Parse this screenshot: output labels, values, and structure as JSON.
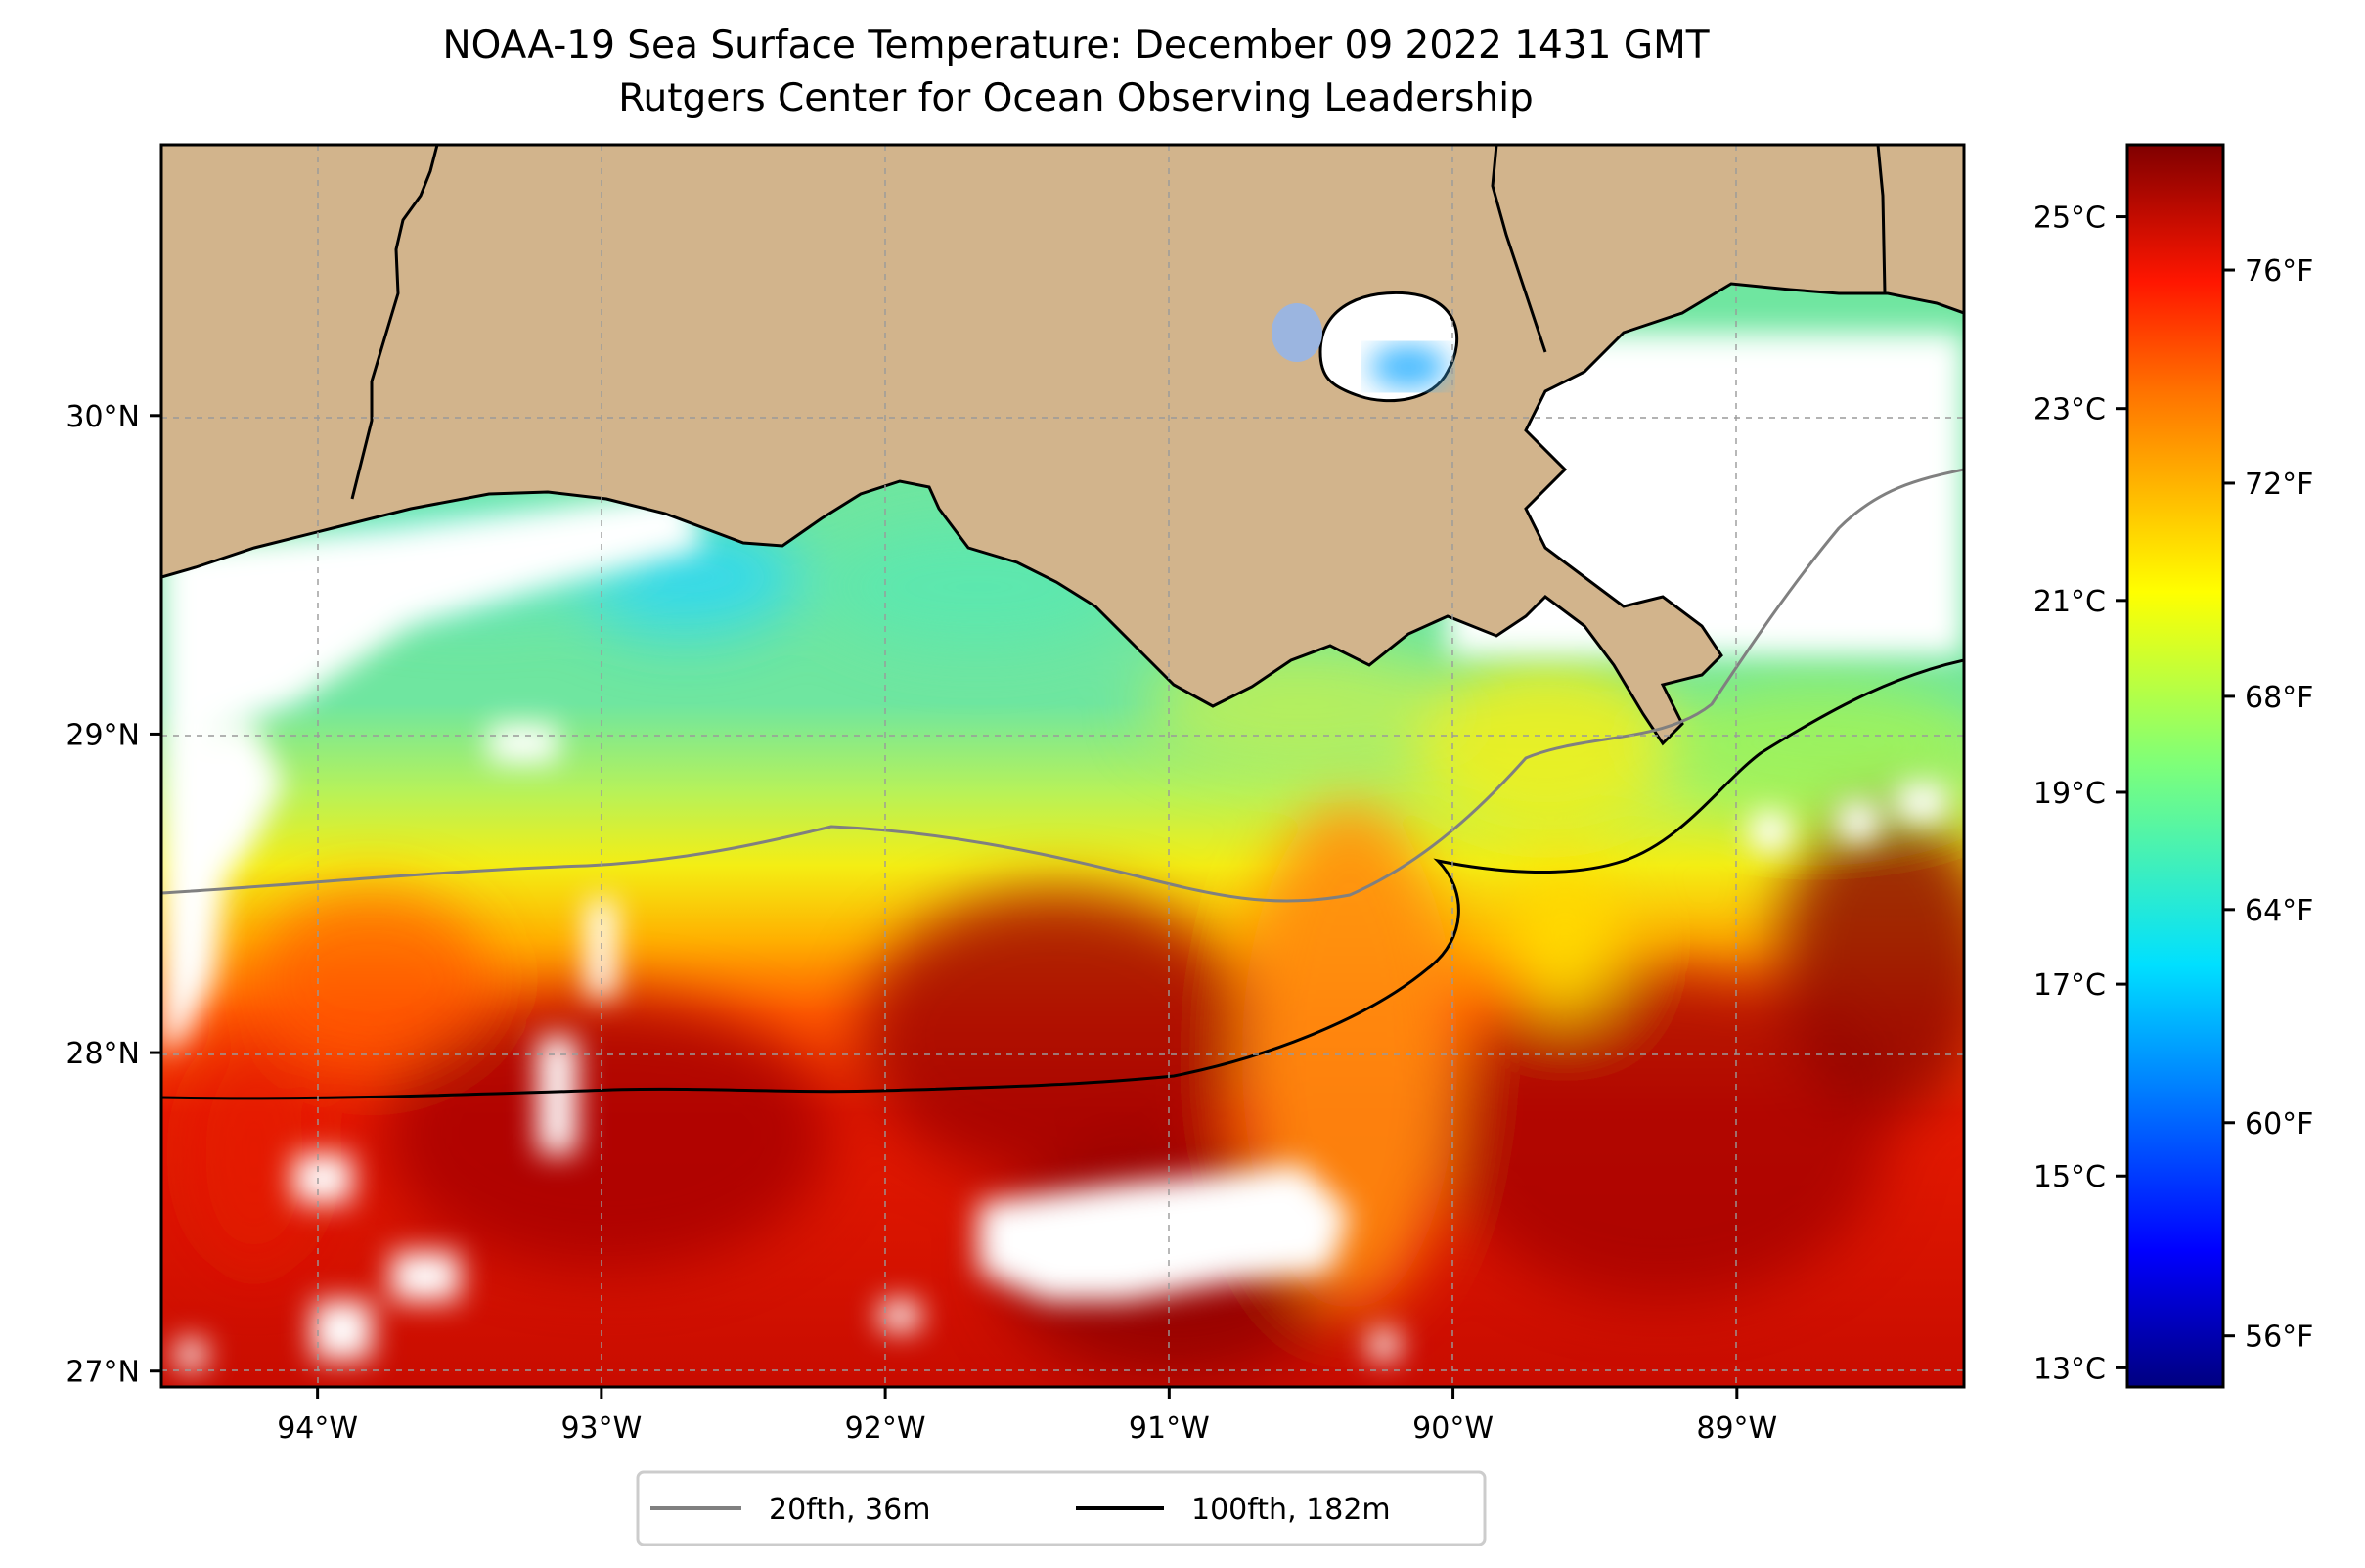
{
  "title": {
    "line1": "NOAA-19 Sea Surface Temperature: December 09 2022 1431 GMT",
    "line2": "Rutgers Center for Ocean Observing Leadership"
  },
  "map": {
    "lon_range": [
      -94.55,
      -88.2
    ],
    "lat_range": [
      26.95,
      30.85
    ],
    "gridlines": true,
    "lon_ticks": [
      {
        "value": -94,
        "label": "94°W"
      },
      {
        "value": -93,
        "label": "93°W"
      },
      {
        "value": -92,
        "label": "92°W"
      },
      {
        "value": -91,
        "label": "91°W"
      },
      {
        "value": -90,
        "label": "90°W"
      },
      {
        "value": -89,
        "label": "89°W"
      }
    ],
    "lat_ticks": [
      {
        "value": 30,
        "label": "30°N"
      },
      {
        "value": 29,
        "label": "29°N"
      },
      {
        "value": 28,
        "label": "28°N"
      },
      {
        "value": 27,
        "label": "27°N"
      }
    ],
    "colors": {
      "land": "#d2b48c",
      "no_data": "#ffffff",
      "lake": "#9bb5e0"
    },
    "isobaths": [
      {
        "label": "20fth, 36m",
        "color": "#808080"
      },
      {
        "label": "100fth, 182m",
        "color": "#000000"
      }
    ]
  },
  "colorbar": {
    "colormap": "jet",
    "celsius_ticks": [
      "25°C",
      "23°C",
      "21°C",
      "19°C",
      "17°C",
      "15°C",
      "13°C"
    ],
    "fahrenheit_ticks": [
      "76°F",
      "72°F",
      "68°F",
      "64°F",
      "60°F",
      "56°F"
    ]
  },
  "legend": {
    "items": [
      {
        "label": "20fth, 36m",
        "color": "#808080"
      },
      {
        "label": "100fth, 182m",
        "color": "#000000"
      }
    ],
    "placement": "bottom-center"
  }
}
